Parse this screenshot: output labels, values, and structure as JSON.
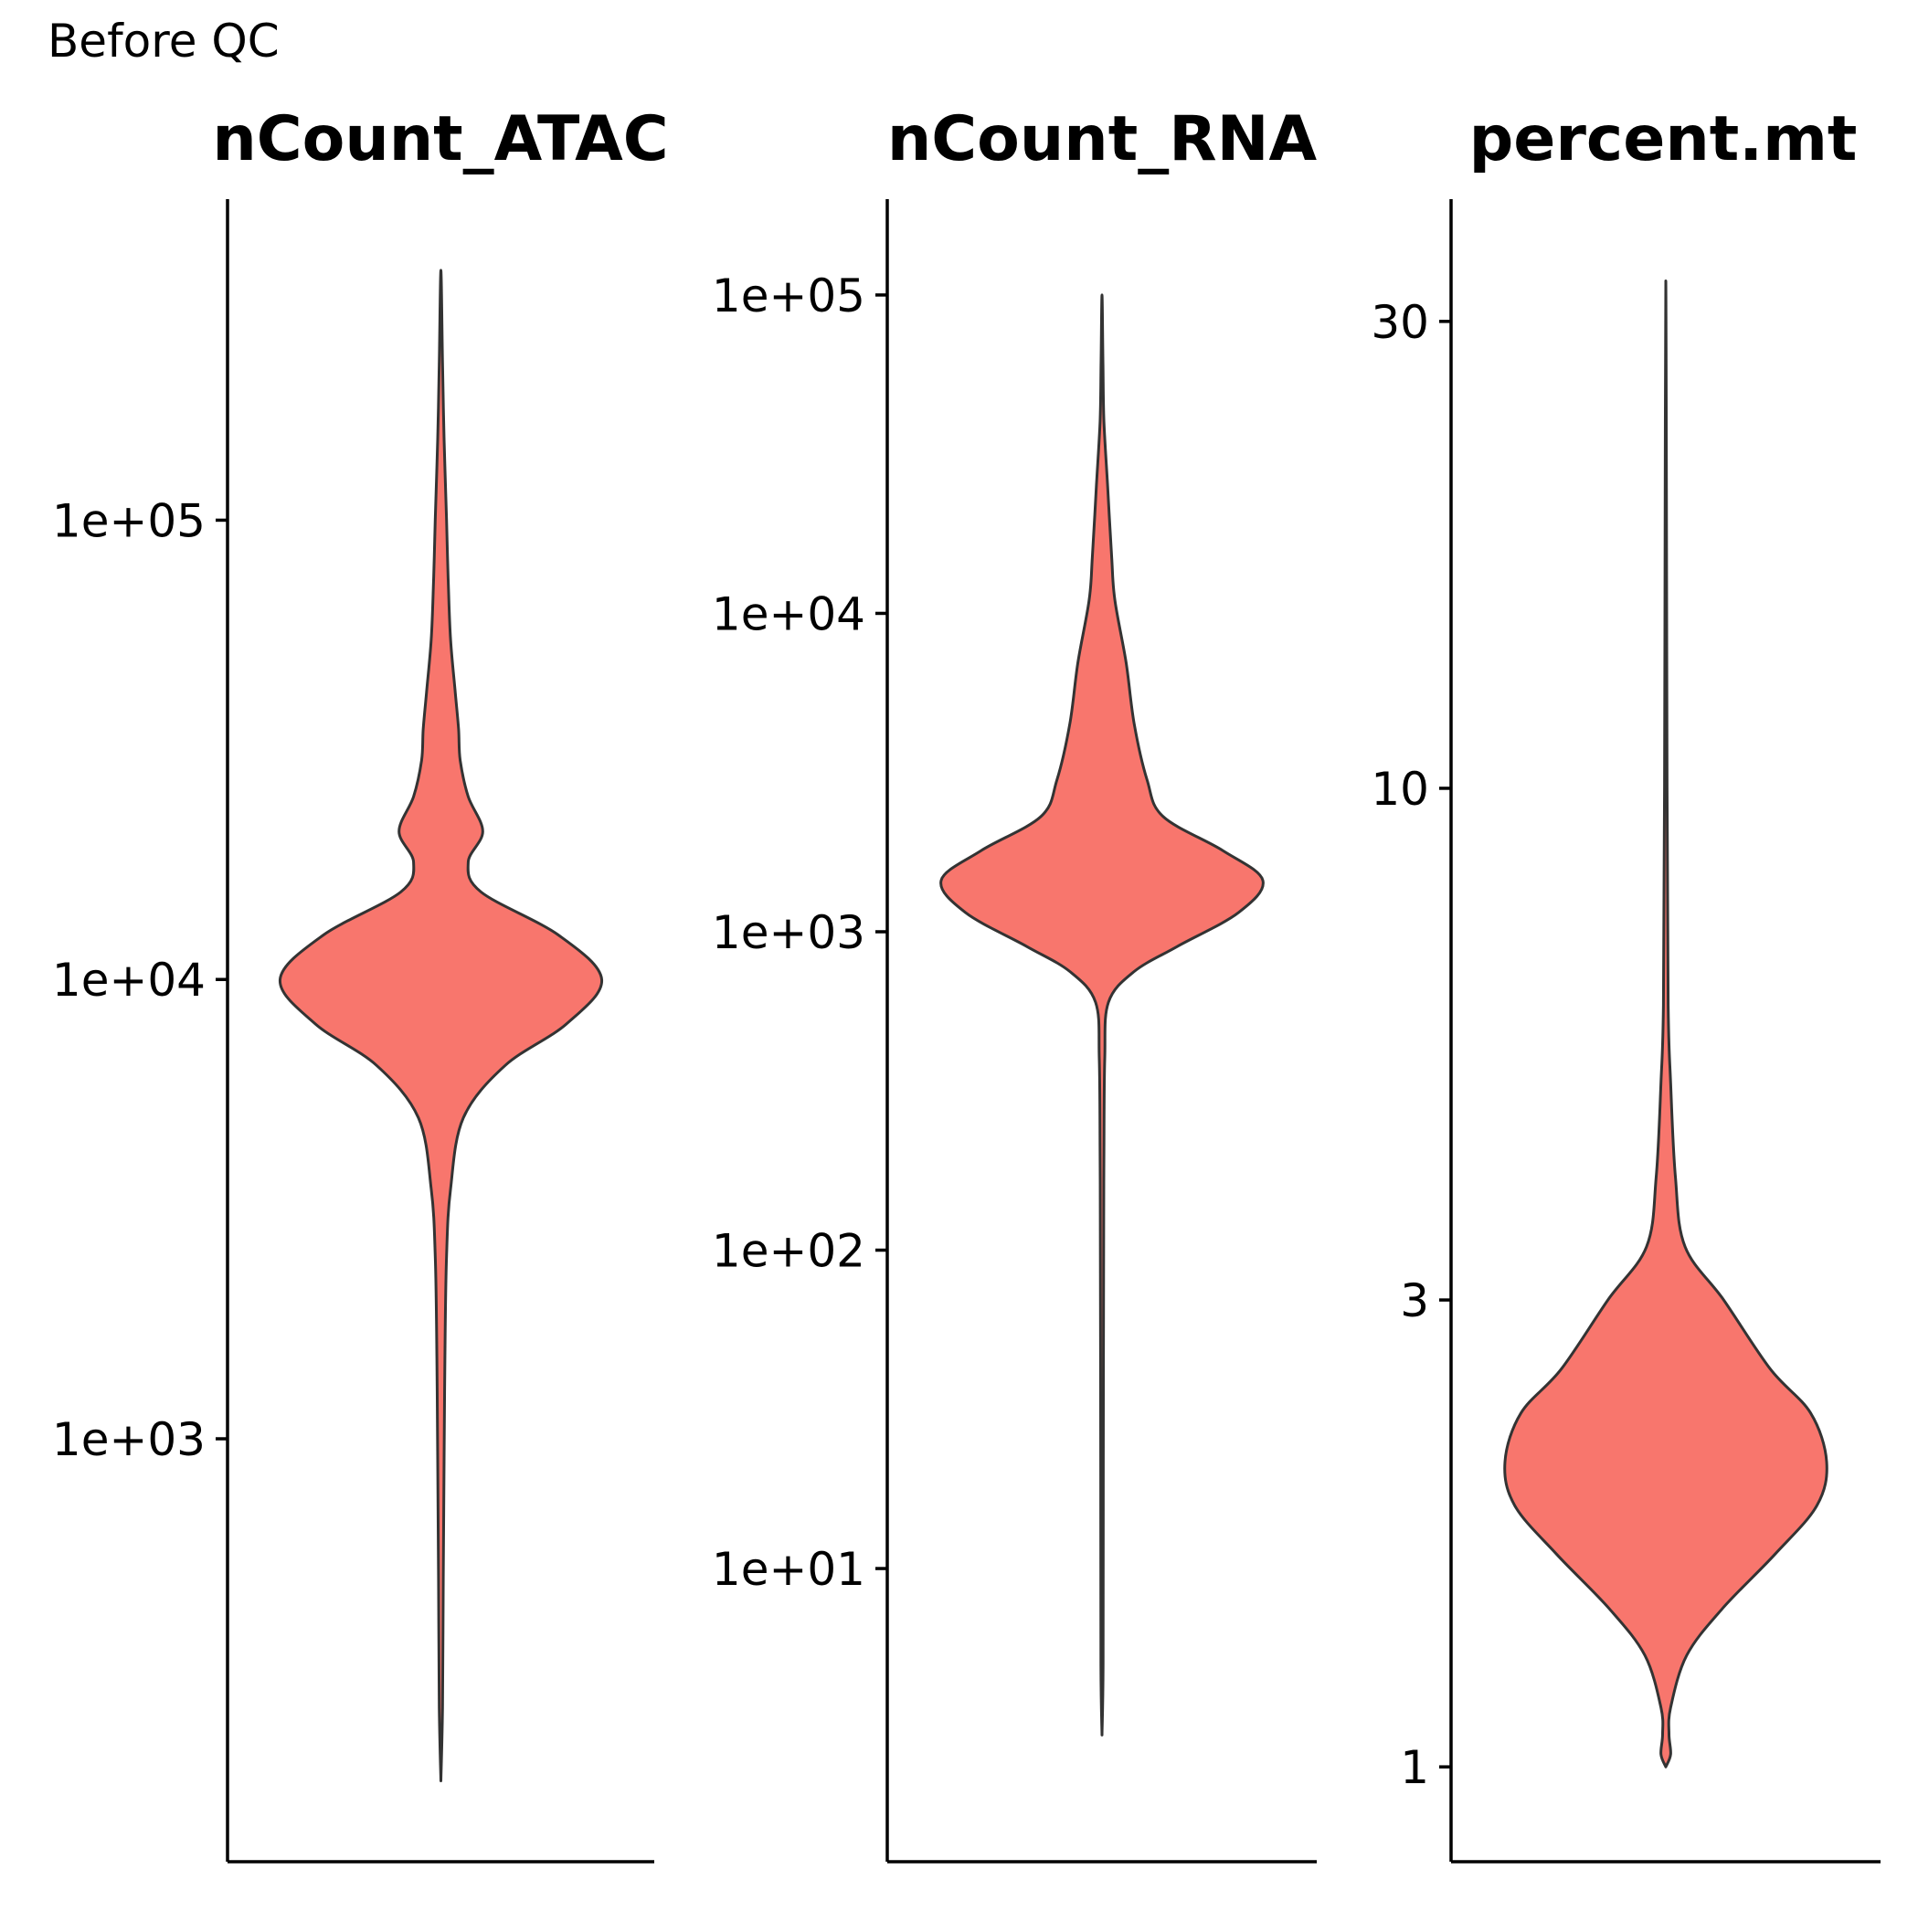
{
  "caption": "Before QC",
  "colors": {
    "fill": "#F8766D",
    "outline": "#333333",
    "axis": "#000000"
  },
  "chart_data": [
    {
      "type": "violin",
      "title": "nCount_ATAC",
      "xlabel": "",
      "ylabel": "",
      "y_scale": "log10",
      "ylim": [
        120,
        500000
      ],
      "y_ticks": [
        {
          "value": 1000,
          "label": "1e+03"
        },
        {
          "value": 10000,
          "label": "1e+04"
        },
        {
          "value": 100000,
          "label": "1e+05"
        }
      ],
      "y_range_data": [
        180,
        350000
      ],
      "density_profile": [
        {
          "y": 180,
          "density": 0.0
        },
        {
          "y": 260,
          "density": 0.01
        },
        {
          "y": 500,
          "density": 0.015
        },
        {
          "y": 900,
          "density": 0.02
        },
        {
          "y": 1500,
          "density": 0.025
        },
        {
          "y": 2500,
          "density": 0.035
        },
        {
          "y": 3500,
          "density": 0.06
        },
        {
          "y": 5000,
          "density": 0.14
        },
        {
          "y": 6500,
          "density": 0.4
        },
        {
          "y": 8000,
          "density": 0.78
        },
        {
          "y": 10000,
          "density": 1.0
        },
        {
          "y": 12500,
          "density": 0.73
        },
        {
          "y": 15500,
          "density": 0.25
        },
        {
          "y": 18000,
          "density": 0.17
        },
        {
          "y": 21000,
          "density": 0.26
        },
        {
          "y": 25000,
          "density": 0.17
        },
        {
          "y": 30000,
          "density": 0.12
        },
        {
          "y": 35000,
          "density": 0.11
        },
        {
          "y": 42000,
          "density": 0.09
        },
        {
          "y": 55000,
          "density": 0.06
        },
        {
          "y": 75000,
          "density": 0.045
        },
        {
          "y": 100000,
          "density": 0.035
        },
        {
          "y": 150000,
          "density": 0.02
        },
        {
          "y": 220000,
          "density": 0.01
        },
        {
          "y": 350000,
          "density": 0.0
        }
      ]
    },
    {
      "type": "violin",
      "title": "nCount_RNA",
      "xlabel": "",
      "ylabel": "",
      "y_scale": "log10",
      "ylim": [
        1.2,
        200000
      ],
      "y_ticks": [
        {
          "value": 10,
          "label": "1e+01"
        },
        {
          "value": 100,
          "label": "1e+02"
        },
        {
          "value": 1000,
          "label": "1e+03"
        },
        {
          "value": 10000,
          "label": "1e+04"
        },
        {
          "value": 100000,
          "label": "1e+05"
        }
      ],
      "y_range_data": [
        3,
        100000
      ],
      "density_profile": [
        {
          "y": 3,
          "density": 0.0
        },
        {
          "y": 5,
          "density": 0.007
        },
        {
          "y": 20,
          "density": 0.008
        },
        {
          "y": 100,
          "density": 0.01
        },
        {
          "y": 200,
          "density": 0.012
        },
        {
          "y": 400,
          "density": 0.017
        },
        {
          "y": 600,
          "density": 0.04
        },
        {
          "y": 750,
          "density": 0.2
        },
        {
          "y": 900,
          "density": 0.47
        },
        {
          "y": 1150,
          "density": 0.85
        },
        {
          "y": 1450,
          "density": 1.0
        },
        {
          "y": 1800,
          "density": 0.75
        },
        {
          "y": 2300,
          "density": 0.38
        },
        {
          "y": 3000,
          "density": 0.28
        },
        {
          "y": 4500,
          "density": 0.2
        },
        {
          "y": 7000,
          "density": 0.15
        },
        {
          "y": 11000,
          "density": 0.08
        },
        {
          "y": 15000,
          "density": 0.06
        },
        {
          "y": 25000,
          "density": 0.035
        },
        {
          "y": 40000,
          "density": 0.012
        },
        {
          "y": 60000,
          "density": 0.006
        },
        {
          "y": 100000,
          "density": 0.0
        }
      ]
    },
    {
      "type": "violin",
      "title": "percent.mt",
      "xlabel": "",
      "ylabel": "",
      "y_scale": "log10",
      "ylim": [
        0.8,
        40
      ],
      "y_ticks": [
        {
          "value": 1,
          "label": "1"
        },
        {
          "value": 3,
          "label": "3"
        },
        {
          "value": 10,
          "label": "10"
        },
        {
          "value": 30,
          "label": "30"
        }
      ],
      "y_range_data": [
        1,
        33
      ],
      "density_profile": [
        {
          "y": 1,
          "density": 0.0
        },
        {
          "y": 1.03,
          "density": 0.03
        },
        {
          "y": 1.08,
          "density": 0.02
        },
        {
          "y": 1.15,
          "density": 0.03
        },
        {
          "y": 1.3,
          "density": 0.13
        },
        {
          "y": 1.45,
          "density": 0.35
        },
        {
          "y": 1.65,
          "density": 0.68
        },
        {
          "y": 1.85,
          "density": 0.94
        },
        {
          "y": 2.05,
          "density": 1.0
        },
        {
          "y": 2.3,
          "density": 0.9
        },
        {
          "y": 2.55,
          "density": 0.65
        },
        {
          "y": 3.0,
          "density": 0.36
        },
        {
          "y": 3.4,
          "density": 0.12
        },
        {
          "y": 4.0,
          "density": 0.06
        },
        {
          "y": 5.0,
          "density": 0.03
        },
        {
          "y": 6.0,
          "density": 0.015
        },
        {
          "y": 10,
          "density": 0.008
        },
        {
          "y": 20,
          "density": 0.004
        },
        {
          "y": 33,
          "density": 0.0
        }
      ]
    }
  ]
}
